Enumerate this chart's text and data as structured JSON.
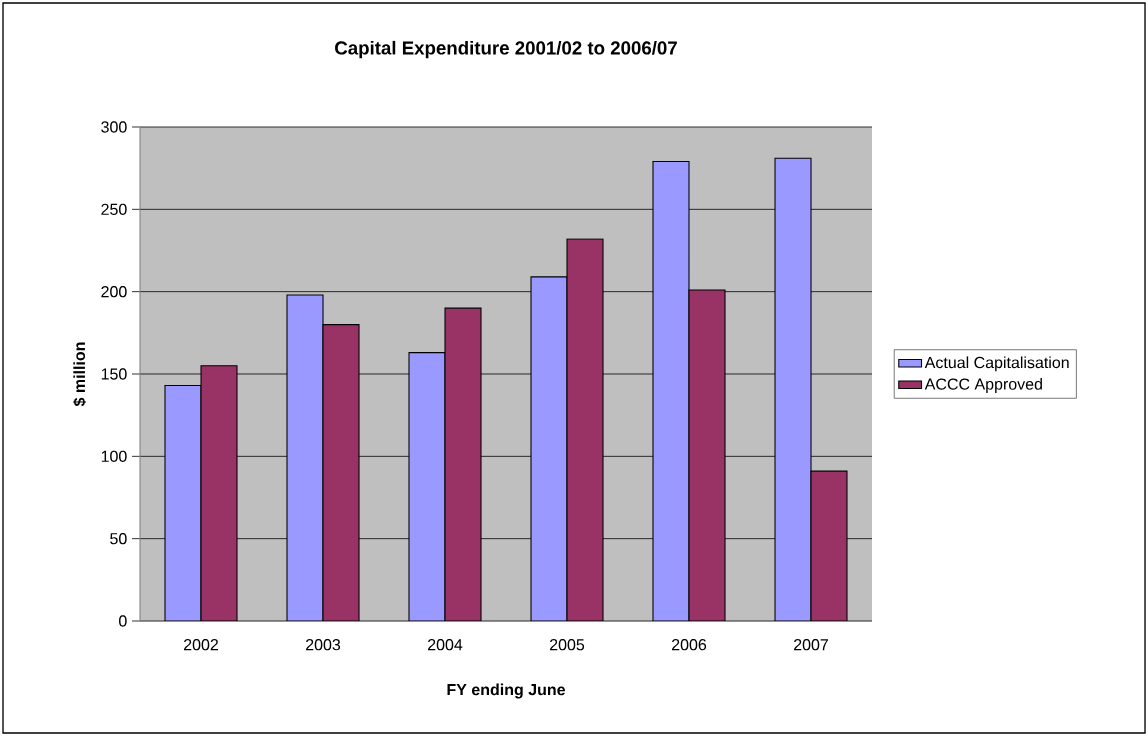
{
  "chart_data": {
    "type": "bar",
    "title": "Capital Expenditure 2001/02 to 2006/07",
    "xlabel": "FY ending June",
    "ylabel": "$ million",
    "categories": [
      "2002",
      "2003",
      "2004",
      "2005",
      "2006",
      "2007"
    ],
    "series": [
      {
        "name": "Actual Capitalisation",
        "color": "#9999ff",
        "values": [
          143,
          198,
          163,
          209,
          279,
          281
        ]
      },
      {
        "name": "ACCC Approved",
        "color": "#993366",
        "values": [
          155,
          180,
          190,
          232,
          201,
          91
        ]
      }
    ],
    "ylim": [
      0,
      300
    ],
    "yticks": [
      0,
      50,
      100,
      150,
      200,
      250,
      300
    ],
    "grid": "y",
    "legend": "right"
  }
}
